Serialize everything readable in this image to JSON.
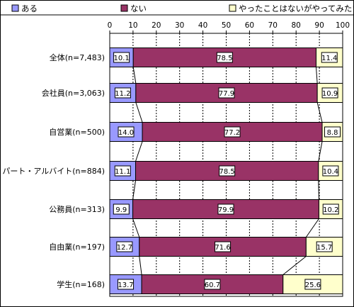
{
  "chart_data": {
    "type": "bar",
    "orientation": "horizontal",
    "stacked": true,
    "percent": true,
    "xlim": [
      0,
      100
    ],
    "x_ticks": [
      0,
      10,
      20,
      30,
      40,
      50,
      60,
      70,
      80,
      90,
      100
    ],
    "grid": true,
    "legend_position": "top",
    "categories": [
      "全体(n=7,483)",
      "会社員(n=3,063)",
      "自営業(n=500)",
      "パート・アルバイト(n=884)",
      "公務員(n=313)",
      "自由業(n=197)",
      "学生(n=168)"
    ],
    "series": [
      {
        "name": "ある",
        "color": "#9999ff",
        "values": [
          10.1,
          11.2,
          14.0,
          11.1,
          9.9,
          12.7,
          13.7
        ]
      },
      {
        "name": "ない",
        "color": "#993366",
        "values": [
          78.5,
          77.9,
          77.2,
          78.5,
          79.9,
          71.6,
          60.7
        ]
      },
      {
        "name": "やったことはないがやってみたい",
        "color": "#ffffcc",
        "values": [
          11.4,
          10.9,
          8.8,
          10.4,
          10.2,
          15.7,
          25.6
        ]
      }
    ],
    "data_labels": [
      [
        "10.1",
        "11.2",
        "14.0",
        "11.1",
        "9.9",
        "12.7",
        "13.7"
      ],
      [
        "78.5",
        "77.9",
        "77.2",
        "78.5",
        "79.9",
        "71.6",
        "60.7"
      ],
      [
        "11.4",
        "10.9",
        "8.8",
        "10.4",
        "10.2",
        "15.7",
        "25.6"
      ]
    ]
  }
}
